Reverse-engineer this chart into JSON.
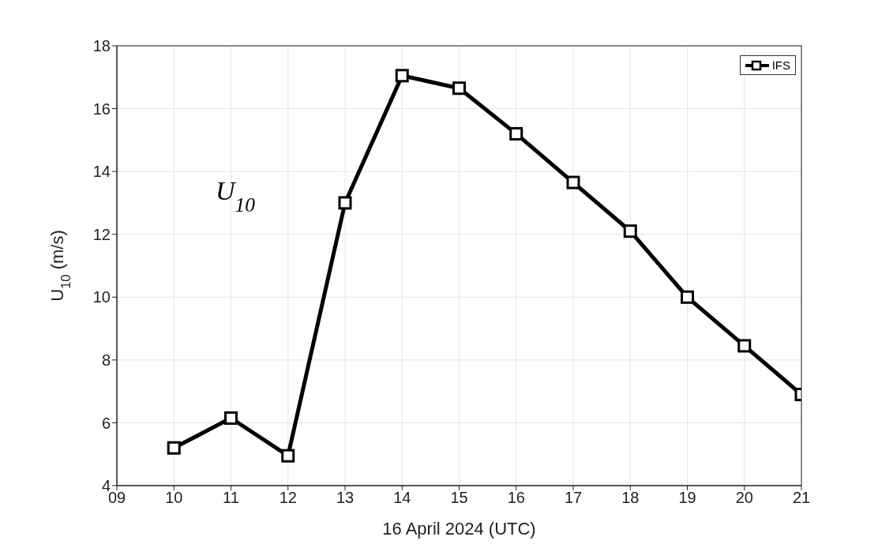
{
  "chart_data": {
    "type": "line",
    "xlabel": "16 April 2024 (UTC)",
    "ylabel": "U$_{10}$ (m/s)",
    "annotations": [
      "U$_{10}$"
    ],
    "x": [
      10,
      11,
      12,
      13,
      14,
      15,
      16,
      17,
      18,
      19,
      20,
      21
    ],
    "series": [
      {
        "name": "IFS",
        "color": "#000000",
        "values": [
          5.2,
          6.15,
          4.95,
          13.0,
          17.05,
          16.65,
          15.2,
          13.65,
          12.1,
          10.0,
          8.45,
          6.9
        ]
      }
    ],
    "xlim": [
      9,
      21
    ],
    "xticks": [
      {
        "value": 9,
        "label": "09"
      },
      10,
      11,
      12,
      13,
      14,
      15,
      16,
      17,
      18,
      19,
      20,
      21
    ],
    "ylim": [
      4,
      18
    ],
    "yticks": [
      4,
      6,
      8,
      10,
      12,
      14,
      16,
      18
    ],
    "grid": true,
    "legend": "top right",
    "marker": "square",
    "line_style": "solid"
  }
}
